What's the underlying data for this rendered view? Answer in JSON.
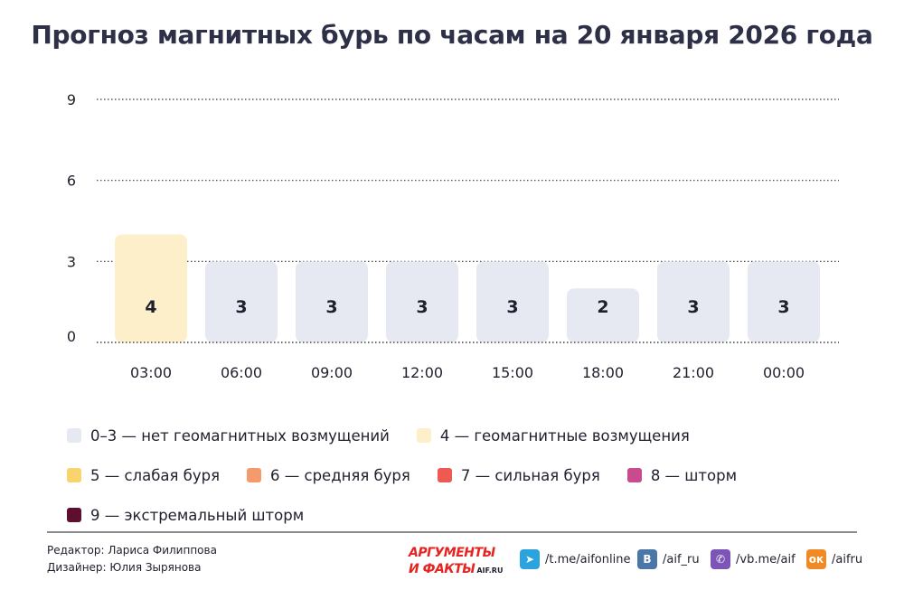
{
  "title": "Прогноз магнитных бурь по часам на 20 января 2026 года",
  "chart_data": {
    "type": "bar",
    "categories": [
      "03:00",
      "06:00",
      "09:00",
      "12:00",
      "15:00",
      "18:00",
      "21:00",
      "00:00"
    ],
    "values": [
      4,
      3,
      3,
      3,
      3,
      2,
      3,
      3
    ],
    "ylim": [
      0,
      9
    ],
    "yticks": [
      0,
      3,
      6,
      9
    ],
    "grid": true,
    "bar_colors": [
      "#fdefc9",
      "#e6e9f2",
      "#e6e9f2",
      "#e6e9f2",
      "#e6e9f2",
      "#e6e9f2",
      "#e6e9f2",
      "#e6e9f2"
    ]
  },
  "legend": [
    [
      {
        "color": "#e6e9f2",
        "label": "0–3 — нет геомагнитных возмущений"
      },
      {
        "color": "#fdefc9",
        "label": "4 — геомагнитные возмущения"
      }
    ],
    [
      {
        "color": "#f9d46e",
        "label": "5 — слабая буря"
      },
      {
        "color": "#f59a6a",
        "label": "6 — средняя буря"
      },
      {
        "color": "#ee5a52",
        "label": "7 — сильная буря"
      },
      {
        "color": "#c84b8b",
        "label": "8 — шторм"
      }
    ],
    [
      {
        "color": "#5e0e2f",
        "label": "9 — экстремальный шторм"
      }
    ]
  ],
  "credits": {
    "editor": "Редактор: Лариса Филиппова",
    "designer": "Дизайнер: Юлия Зырянова"
  },
  "logo": {
    "line1": "АРГУМЕНТЫ",
    "line2": "И ФАКТЫ",
    "site": "AIF.RU"
  },
  "social": [
    {
      "icon": "telegram-icon",
      "color": "#2aa3df",
      "glyph": "➤",
      "label": "/t.me/aifonline"
    },
    {
      "icon": "vk-icon",
      "color": "#4a76a8",
      "glyph": "В",
      "label": "/aif_ru"
    },
    {
      "icon": "viber-icon",
      "color": "#7d54b8",
      "glyph": "✆",
      "label": "/vb.me/aif"
    },
    {
      "icon": "odnoklassniki-icon",
      "color": "#f08a24",
      "glyph": "ок",
      "label": "/aifru"
    }
  ]
}
